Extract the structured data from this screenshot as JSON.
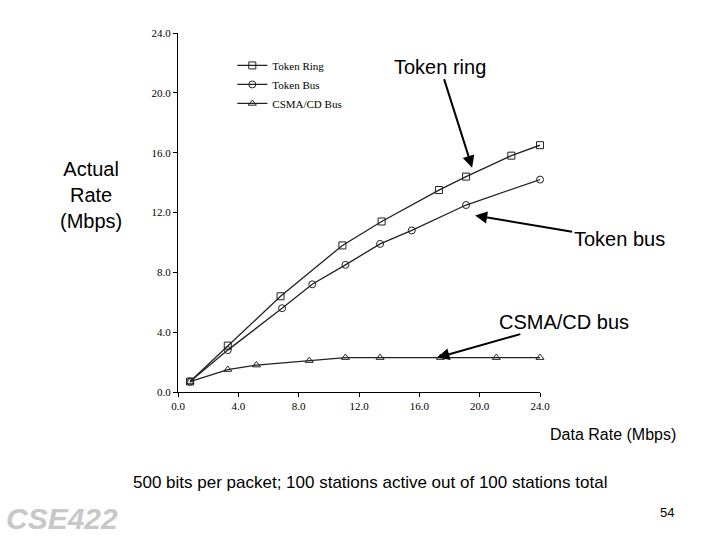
{
  "chart_data": {
    "type": "line",
    "xlabel": "Data Rate (Mbps)",
    "ylabel": "Actual Rate (Mbps)",
    "caption": "500 bits per packet; 100 stations active out of 100 stations total",
    "page_number": "54",
    "logo": "CSE422",
    "xlim": [
      0,
      24
    ],
    "ylim": [
      0,
      24
    ],
    "xticks": [
      {
        "value": 0,
        "label": "0.0"
      },
      {
        "value": 4,
        "label": "4.0"
      },
      {
        "value": 8,
        "label": "8.0"
      },
      {
        "value": 12,
        "label": "12.0"
      },
      {
        "value": 16,
        "label": "16.0"
      },
      {
        "value": 20,
        "label": "20.0"
      },
      {
        "value": 24,
        "label": "24.0"
      }
    ],
    "yticks": [
      {
        "value": 0,
        "label": "0.0"
      },
      {
        "value": 4,
        "label": "4.0"
      },
      {
        "value": 8,
        "label": "8.0"
      },
      {
        "value": 12,
        "label": "12.0"
      },
      {
        "value": 16,
        "label": "16.0"
      },
      {
        "value": 20,
        "label": "20.0"
      },
      {
        "value": 24,
        "label": "24.0"
      }
    ],
    "grid": false,
    "legend": "upper left",
    "series": [
      {
        "name": "Token Ring",
        "color": "#222222",
        "marker": "square",
        "x": [
          0.8,
          3.3,
          6.8,
          10.9,
          13.5,
          17.3,
          19.1,
          22.1,
          24
        ],
        "values": [
          0.7,
          3.1,
          6.4,
          9.8,
          11.4,
          13.5,
          14.4,
          15.8,
          16.5
        ]
      },
      {
        "name": "Token Bus",
        "color": "#222222",
        "marker": "circle",
        "x": [
          0.8,
          3.3,
          6.9,
          8.9,
          11.1,
          13.4,
          15.5,
          19.1,
          24
        ],
        "values": [
          0.7,
          2.8,
          5.6,
          7.2,
          8.5,
          9.9,
          10.8,
          12.5,
          14.2
        ]
      },
      {
        "name": "CSMA/CD Bus",
        "color": "#222222",
        "marker": "triangle",
        "x": [
          0.8,
          3.3,
          5.2,
          8.7,
          11.1,
          13.4,
          17.4,
          21.1,
          24
        ],
        "values": [
          0.7,
          1.5,
          1.8,
          2.1,
          2.3,
          2.3,
          2.3,
          2.3,
          2.3
        ]
      }
    ],
    "annotations": [
      {
        "text": "Token ring",
        "x": 19.5,
        "y": 15.0
      },
      {
        "text": "Token bus",
        "x": 19.7,
        "y": 11.8
      },
      {
        "text": "CSMA/CD bus",
        "x": 17.2,
        "y": 2.3
      }
    ]
  }
}
